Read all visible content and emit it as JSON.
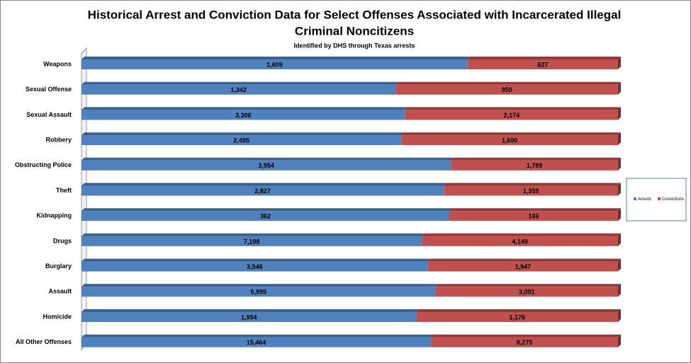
{
  "chart_data": {
    "type": "bar",
    "orientation": "horizontal",
    "stacked": "percent",
    "title": [
      "Historical Arrest and Conviction Data for Select Offenses Associated with Incarcerated Illegal",
      "Criminal Noncitizens"
    ],
    "subtitle": "Identified by DHS through Texas arrests",
    "categories": [
      "Weapons",
      "Sexual Offense",
      "Sexual Assault",
      "Robbery",
      "Obstructing Police",
      "Theft",
      "Kidnapping",
      "Drugs",
      "Burglary",
      "Assault",
      "Homicide",
      "All Other Offenses"
    ],
    "series": [
      {
        "name": "Arrests",
        "color": "#4f81bd",
        "values": [
          1609,
          1342,
          3306,
          2495,
          3954,
          2827,
          362,
          7198,
          3546,
          5995,
          1954,
          15464
        ],
        "value_labels": [
          "1,609",
          "1,342",
          "3,306",
          "2,495",
          "3,954",
          "2,827",
          "362",
          "7,198",
          "3,546",
          "5,995",
          "1,954",
          "15,464"
        ]
      },
      {
        "name": "Convictions",
        "color": "#c0504d",
        "values": [
          627,
          950,
          2174,
          1690,
          1789,
          1359,
          166,
          4149,
          1947,
          3091,
          1176,
          8275
        ],
        "value_labels": [
          "627",
          "950",
          "2,174",
          "1,690",
          "1,789",
          "1,359",
          "166",
          "4,149",
          "1,947",
          "3,091",
          "1,176",
          "8,275"
        ]
      }
    ],
    "legend": "right"
  }
}
